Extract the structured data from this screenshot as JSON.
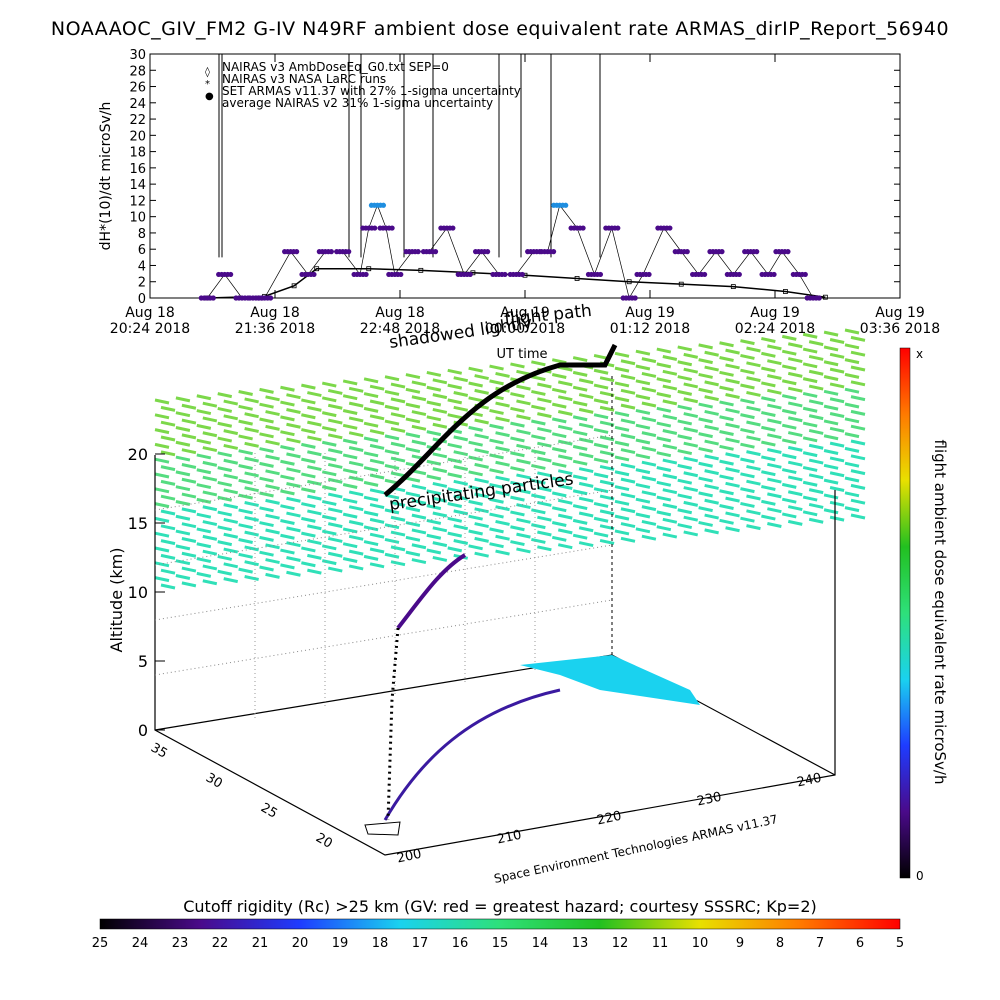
{
  "title": "NOAAAOC_GIV_FM2 G-IV   N49RF  ambient dose equivalent rate ARMAS_dirIP_Report_56940",
  "top_chart": {
    "ylabel": "dH*(10)/dt microSv/h",
    "xlabel": "UT time",
    "y_ticks": [
      "0",
      "2",
      "4",
      "6",
      "8",
      "10",
      "12",
      "14",
      "16",
      "18",
      "20",
      "22",
      "24",
      "26",
      "28",
      "30"
    ],
    "x_ticks": [
      {
        "l1": "Aug 18",
        "l2": "20:24 2018"
      },
      {
        "l1": "Aug 18",
        "l2": "21:36 2018"
      },
      {
        "l1": "Aug 18",
        "l2": "22:48 2018"
      },
      {
        "l1": "Aug 19",
        "l2": "00:00 2018"
      },
      {
        "l1": "Aug 19",
        "l2": "01:12 2018"
      },
      {
        "l1": "Aug 19",
        "l2": "02:24 2018"
      },
      {
        "l1": "Aug 19",
        "l2": "03:36 2018"
      }
    ],
    "legend": [
      {
        "symbol": "◊",
        "text": "NAIRAS v3 AmbDoseEq_G0.txt SEP=0"
      },
      {
        "symbol": "*",
        "text": "NAIRAS v3 NASA LaRC runs"
      },
      {
        "symbol": "●",
        "text": "SET ARMAS v11.37 with 27% 1-sigma uncertainty"
      },
      {
        "symbol": "",
        "text": "average NAIRAS v2 31% 1-sigma uncertainty"
      }
    ]
  },
  "chart_data": [
    {
      "type": "scatter",
      "title": "NOAAAOC_GIV_FM2 G-IV   N49RF  ambient dose equivalent rate ARMAS_dirIP_Report_56940",
      "xlabel": "UT time",
      "ylabel": "dH*(10)/dt microSv/h",
      "xlim": [
        "2018-08-18 20:24",
        "2018-08-19 03:36"
      ],
      "ylim": [
        0,
        30
      ],
      "series": [
        {
          "name": "SET ARMAS v11.37 with 27% 1-sigma uncertainty",
          "x": [
            "2018-08-18 20:57",
            "2018-08-18 21:07",
            "2018-08-18 21:17",
            "2018-08-18 21:25",
            "2018-08-18 21:30",
            "2018-08-18 21:45",
            "2018-08-18 21:55",
            "2018-08-18 22:05",
            "2018-08-18 22:15",
            "2018-08-18 22:25",
            "2018-08-18 22:30",
            "2018-08-18 22:35",
            "2018-08-18 22:40",
            "2018-08-18 22:45",
            "2018-08-18 22:55",
            "2018-08-18 23:05",
            "2018-08-18 23:15",
            "2018-08-18 23:25",
            "2018-08-18 23:35",
            "2018-08-18 23:45",
            "2018-08-18 23:55",
            "2018-08-19 00:05",
            "2018-08-19 00:13",
            "2018-08-19 00:20",
            "2018-08-19 00:30",
            "2018-08-19 00:40",
            "2018-08-19 00:50",
            "2018-08-19 01:00",
            "2018-08-19 01:08",
            "2018-08-19 01:20",
            "2018-08-19 01:30",
            "2018-08-19 01:40",
            "2018-08-19 01:50",
            "2018-08-19 02:00",
            "2018-08-19 02:10",
            "2018-08-19 02:20",
            "2018-08-19 02:28",
            "2018-08-19 02:38",
            "2018-08-19 02:46"
          ],
          "y": [
            0,
            2.9,
            0,
            0,
            0,
            5.7,
            2.9,
            5.7,
            5.7,
            2.9,
            8.6,
            11.4,
            8.6,
            2.9,
            5.7,
            5.7,
            8.6,
            2.9,
            5.7,
            2.9,
            2.9,
            5.7,
            5.7,
            11.4,
            8.6,
            2.9,
            8.6,
            0,
            2.9,
            8.6,
            5.7,
            2.9,
            5.7,
            2.9,
            5.7,
            2.9,
            5.7,
            2.9,
            0
          ]
        },
        {
          "name": "NAIRAS v3 AmbDoseEq_G0.txt SEP=0",
          "x": [
            "2018-08-18 20:57",
            "2018-08-18 21:30",
            "2018-08-18 21:47",
            "2018-08-18 22:00",
            "2018-08-18 22:30",
            "2018-08-18 23:00",
            "2018-08-18 23:30",
            "2018-08-19 00:00",
            "2018-08-19 00:30",
            "2018-08-19 01:00",
            "2018-08-19 01:30",
            "2018-08-19 02:00",
            "2018-08-19 02:30",
            "2018-08-19 02:53"
          ],
          "y": [
            0,
            0.2,
            1.5,
            3.6,
            3.6,
            3.4,
            3.1,
            2.8,
            2.4,
            2.0,
            1.7,
            1.4,
            0.8,
            0.1
          ]
        }
      ]
    },
    {
      "type": "scatter",
      "title": "",
      "zlabel": "Altitude (km)",
      "z_ticks": [
        "0",
        "5",
        "10",
        "15",
        "20"
      ],
      "lat_ticks": [
        "20",
        "25",
        "30",
        "35"
      ],
      "lon_ticks": [
        "200",
        "210",
        "220",
        "230",
        "240"
      ],
      "annotations": [
        "flight path",
        "shadowed lightly",
        "precipitating particles",
        "Space Environment Technologies ARMAS v11.37"
      ],
      "colorbar_label": "flight ambient dose equivalent rate microSv/h",
      "colorbar_ticks": [
        "x",
        "0"
      ]
    },
    {
      "type": "heatmap",
      "title": "Cutoff rigidity (Rc) >25 km (GV: red = greatest hazard; courtesy SSSRC; Kp=2)",
      "ticks": [
        "25",
        "24",
        "23",
        "22",
        "21",
        "20",
        "19",
        "18",
        "17",
        "16",
        "15",
        "14",
        "13",
        "12",
        "11",
        "10",
        "9",
        "8",
        "7",
        "6",
        "5"
      ]
    }
  ],
  "colors": {
    "armas_points": "#4a0a8a",
    "armas_high": "#1e8ee0",
    "nairas": "#000000",
    "surface_top": "#7cd84a",
    "surface_mid": "#30e0b8",
    "map_patch": "#1ad2ef"
  }
}
